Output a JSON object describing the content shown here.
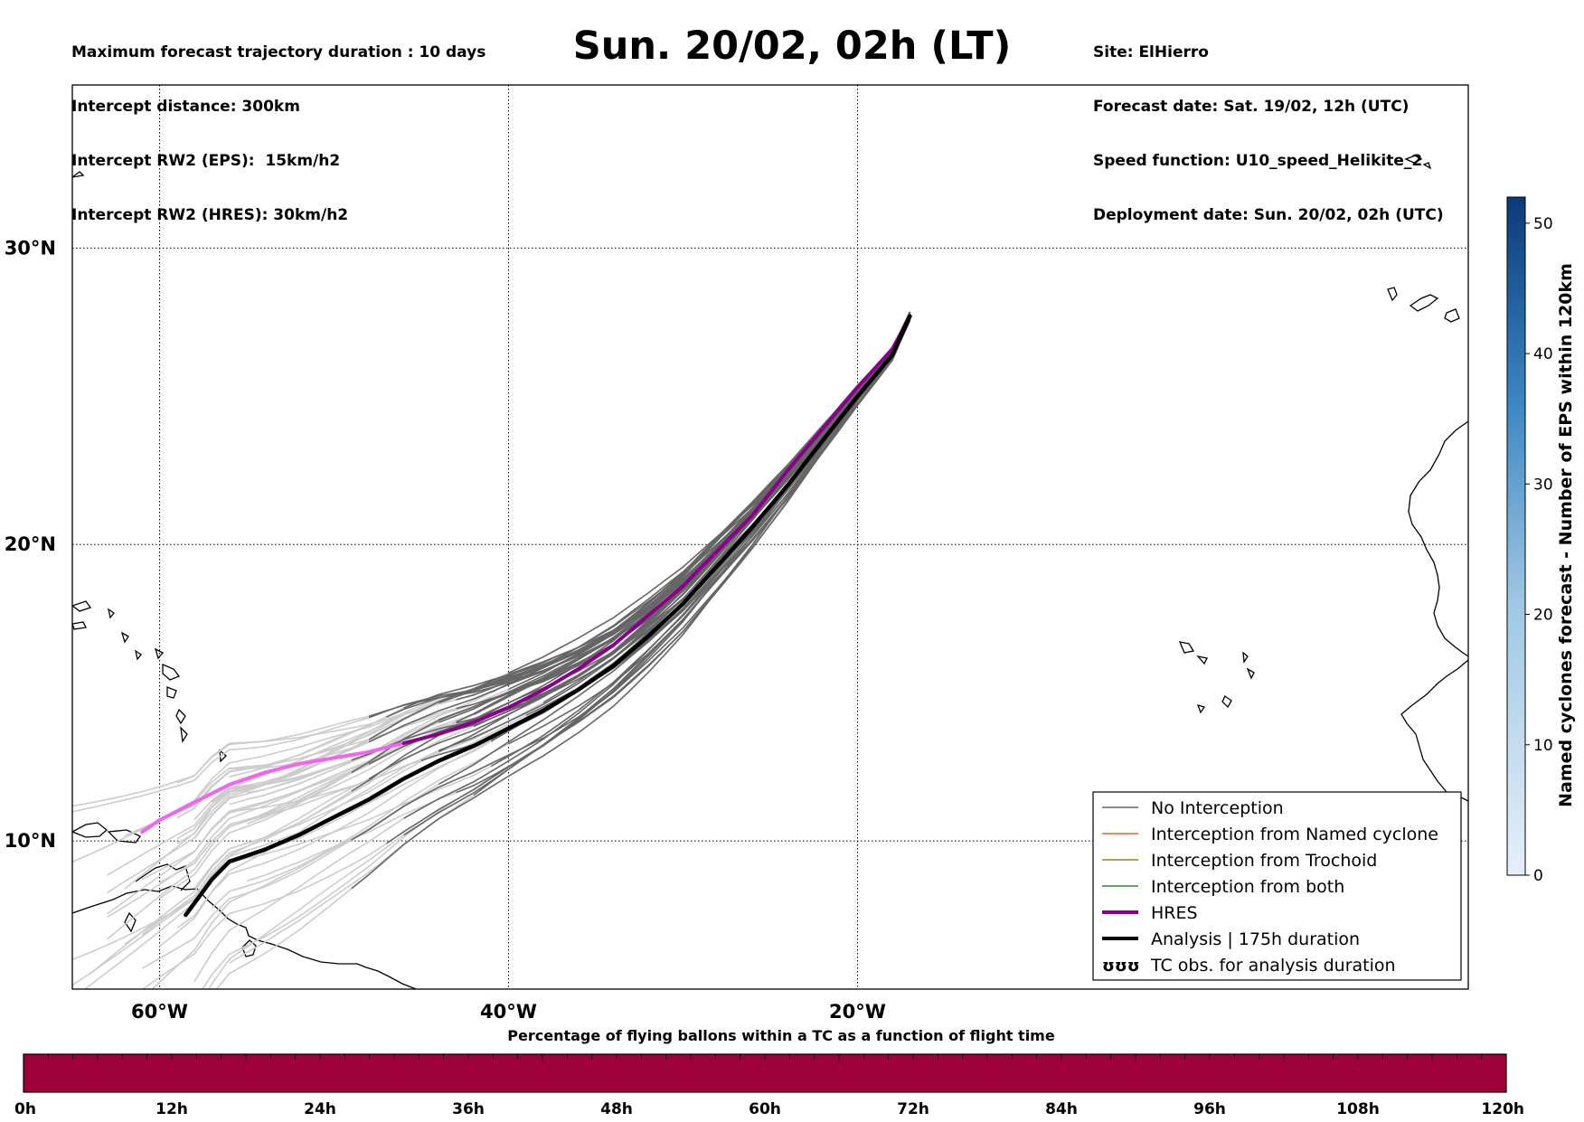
{
  "header": {
    "left_lines": [
      "Maximum forecast trajectory duration : 10 days",
      "Intercept distance: 300km",
      "Intercept RW2 (EPS):  15km/h2",
      "Intercept RW2 (HRES): 30km/h2"
    ],
    "title": "Sun. 20/02, 02h (LT)",
    "right_lines": [
      "Site: ElHierro",
      "Forecast date: Sat. 19/02, 12h (UTC)",
      "Speed function: U10_speed_Helikite_2",
      "Deployment date: Sun. 20/02, 02h (UTC)"
    ]
  },
  "map": {
    "lon_range": [
      -65,
      15
    ],
    "lat_range": [
      5,
      35.5
    ],
    "lat_ticks": [
      {
        "value": 30,
        "label": "30°N"
      },
      {
        "value": 20,
        "label": "20°N"
      },
      {
        "value": 10,
        "label": "10°N"
      }
    ],
    "lon_ticks": [
      {
        "value": -60,
        "label": "60°W"
      },
      {
        "value": -40,
        "label": "40°W"
      },
      {
        "value": -20,
        "label": "20°W"
      }
    ],
    "colors": {
      "no_interception": "#666666",
      "faded_trajectory": "#cccccc",
      "named_cyclone": "#e8622a",
      "trochoid": "#8a8a2a",
      "both": "#2e8b2e",
      "hres": "#8b008b",
      "hres_faded": "#ee66ee",
      "analysis": "#000000"
    },
    "legend": [
      {
        "label": "No Interception",
        "style": "no_interception"
      },
      {
        "label": "Interception from Named cyclone",
        "style": "named_cyclone"
      },
      {
        "label": "Interception from Trochoid",
        "style": "trochoid"
      },
      {
        "label": "Interception from both",
        "style": "both"
      },
      {
        "label": "HRES",
        "style": "hres"
      },
      {
        "label": "Analysis | 175h duration",
        "style": "analysis"
      },
      {
        "label": "TC obs. for analysis duration",
        "style": "tc_obs",
        "symbol": "ʊʊʊ"
      }
    ],
    "hres_track": [
      [
        -17.0,
        27.7
      ],
      [
        -18,
        26.6
      ],
      [
        -20,
        25.3
      ],
      [
        -22,
        23.9
      ],
      [
        -24,
        22.5
      ],
      [
        -26,
        21.0
      ],
      [
        -28,
        19.8
      ],
      [
        -30,
        18.6
      ],
      [
        -32,
        17.6
      ],
      [
        -34,
        16.6
      ],
      [
        -36,
        15.8
      ],
      [
        -38,
        15.1
      ],
      [
        -40,
        14.5
      ],
      [
        -42,
        14.0
      ],
      [
        -44,
        13.6
      ],
      [
        -46,
        13.3
      ],
      [
        -48,
        13.0
      ],
      [
        -50,
        12.8
      ],
      [
        -52,
        12.6
      ],
      [
        -54,
        12.3
      ],
      [
        -56,
        11.9
      ],
      [
        -58,
        11.3
      ],
      [
        -60,
        10.7
      ],
      [
        -61,
        10.3
      ]
    ],
    "analysis_track": [
      [
        -17.0,
        27.7
      ],
      [
        -18,
        26.4
      ],
      [
        -20,
        25.0
      ],
      [
        -22,
        23.5
      ],
      [
        -24,
        22.0
      ],
      [
        -26,
        20.6
      ],
      [
        -28,
        19.3
      ],
      [
        -30,
        18.0
      ],
      [
        -32,
        16.9
      ],
      [
        -34,
        15.9
      ],
      [
        -36,
        15.1
      ],
      [
        -38,
        14.4
      ],
      [
        -40,
        13.8
      ],
      [
        -42,
        13.2
      ],
      [
        -44,
        12.7
      ],
      [
        -46,
        12.1
      ],
      [
        -48,
        11.4
      ],
      [
        -50,
        10.8
      ],
      [
        -52,
        10.2
      ],
      [
        -54,
        9.7
      ],
      [
        -56,
        9.3
      ],
      [
        -57,
        8.7
      ],
      [
        -58.5,
        7.5
      ]
    ]
  },
  "colorbar_right": {
    "label": "Named cyclones forecast - Number of EPS within 120km",
    "min": 0,
    "max": 52,
    "ticks": [
      0,
      10,
      20,
      30,
      40,
      50
    ],
    "color_low": "#e6eff9",
    "color_high": "#0b3a7a"
  },
  "colorbar_bottom": {
    "title": "Percentage of flying ballons within a TC as a function of flight time",
    "ticks": [
      "0h",
      "12h",
      "24h",
      "36h",
      "48h",
      "60h",
      "72h",
      "84h",
      "96h",
      "108h",
      "120h"
    ],
    "fill_color": "#9e003a"
  }
}
